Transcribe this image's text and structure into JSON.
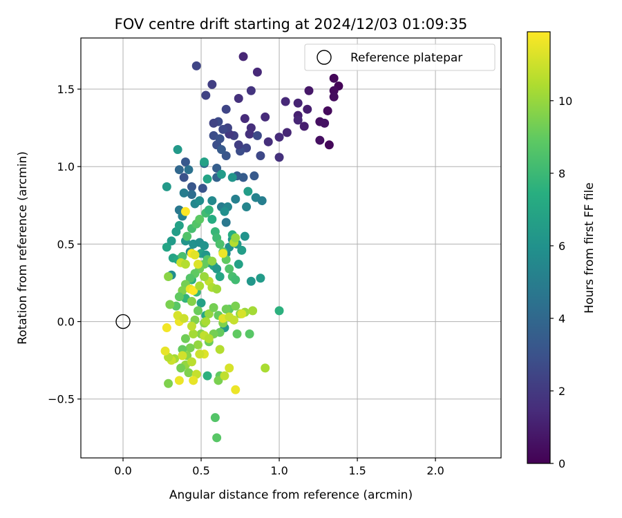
{
  "chart_data": {
    "type": "scatter",
    "title": "FOV centre drift starting at 2024/12/03 01:09:35",
    "xlabel": "Angular distance from reference (arcmin)",
    "ylabel": "Rotation from reference (arcmin)",
    "xlim": [
      -0.27,
      2.42
    ],
    "ylim": [
      -0.88,
      1.83
    ],
    "xticks": [
      0.0,
      0.5,
      1.0,
      1.5,
      2.0
    ],
    "xtick_labels": [
      "0.0",
      "0.5",
      "1.0",
      "1.5",
      "2.0"
    ],
    "yticks": [
      -0.5,
      0.0,
      0.5,
      1.0,
      1.5
    ],
    "ytick_labels": [
      "−0.5",
      "0.0",
      "0.5",
      "1.0",
      "1.5"
    ],
    "grid": true,
    "legend": {
      "placement": "top-right",
      "label": "Reference platepar"
    },
    "reference_point": {
      "x": 0.0,
      "y": 0.0
    },
    "colorbar": {
      "label": "Hours from first FF file",
      "cmap": "viridis",
      "range": [
        0,
        11.9
      ],
      "ticks": [
        0,
        2,
        4,
        6,
        8,
        10
      ],
      "tick_labels": [
        "0",
        "2",
        "4",
        "6",
        "8",
        "10"
      ]
    },
    "points": [
      [
        1.38,
        1.52,
        0.1
      ],
      [
        1.35,
        1.57,
        0.2
      ],
      [
        1.35,
        1.49,
        0.3
      ],
      [
        1.35,
        1.45,
        0.4
      ],
      [
        1.31,
        1.36,
        0.3
      ],
      [
        1.32,
        1.14,
        0.2
      ],
      [
        1.26,
        1.29,
        0.5
      ],
      [
        1.29,
        1.28,
        0.6
      ],
      [
        1.26,
        1.17,
        0.5
      ],
      [
        1.19,
        1.49,
        0.8
      ],
      [
        1.18,
        1.37,
        1.0
      ],
      [
        1.16,
        1.26,
        1.0
      ],
      [
        1.12,
        1.41,
        1.2
      ],
      [
        1.12,
        1.33,
        1.1
      ],
      [
        1.12,
        1.3,
        1.3
      ],
      [
        1.04,
        1.42,
        1.4
      ],
      [
        1.05,
        1.22,
        1.3
      ],
      [
        1.0,
        1.19,
        1.5
      ],
      [
        1.0,
        1.06,
        1.7
      ],
      [
        0.93,
        1.16,
        1.6
      ],
      [
        0.91,
        1.32,
        1.5
      ],
      [
        0.86,
        1.61,
        1.4
      ],
      [
        0.77,
        1.71,
        1.3
      ],
      [
        0.82,
        1.49,
        1.8
      ],
      [
        0.82,
        1.25,
        1.6
      ],
      [
        0.81,
        1.21,
        1.7
      ],
      [
        0.78,
        1.31,
        1.5
      ],
      [
        0.74,
        1.44,
        1.7
      ],
      [
        0.57,
        1.53,
        2.2
      ],
      [
        0.53,
        1.46,
        2.4
      ],
      [
        0.47,
        1.65,
        2.5
      ],
      [
        0.88,
        1.07,
        2.6
      ],
      [
        0.86,
        1.2,
        2.7
      ],
      [
        0.79,
        1.12,
        2.5
      ],
      [
        0.75,
        1.1,
        2.8
      ],
      [
        0.74,
        1.14,
        2.2
      ],
      [
        0.71,
        1.2,
        2.3
      ],
      [
        0.68,
        1.21,
        2.0
      ],
      [
        0.67,
        1.25,
        2.4
      ],
      [
        0.64,
        1.24,
        2.6
      ],
      [
        0.61,
        1.29,
        2.7
      ],
      [
        0.58,
        1.28,
        2.4
      ],
      [
        0.58,
        1.2,
        2.8
      ],
      [
        0.6,
        1.14,
        2.9
      ],
      [
        0.66,
        1.37,
        2.5
      ],
      [
        0.62,
        1.18,
        3.0
      ],
      [
        0.66,
        1.07,
        3.2
      ],
      [
        0.63,
        1.11,
        3.4
      ],
      [
        0.6,
        0.99,
        3.6
      ],
      [
        0.6,
        0.93,
        3.8
      ],
      [
        0.77,
        0.93,
        3.5
      ],
      [
        0.73,
        0.94,
        3.6
      ],
      [
        0.84,
        0.94,
        3.4
      ],
      [
        0.39,
        0.93,
        3.0
      ],
      [
        0.4,
        1.03,
        3.3
      ],
      [
        0.44,
        0.87,
        3.2
      ],
      [
        0.51,
        0.86,
        3.1
      ],
      [
        0.52,
        1.02,
        4.2
      ],
      [
        0.42,
        0.98,
        4.5
      ],
      [
        0.36,
        0.98,
        4.0
      ],
      [
        0.44,
        0.82,
        4.3
      ],
      [
        0.39,
        0.83,
        5.0
      ],
      [
        0.36,
        0.72,
        4.8
      ],
      [
        0.38,
        0.68,
        5.2
      ],
      [
        0.46,
        0.76,
        5.5
      ],
      [
        0.49,
        0.78,
        5.8
      ],
      [
        0.57,
        0.78,
        5.6
      ],
      [
        0.63,
        0.74,
        5.0
      ],
      [
        0.67,
        0.74,
        5.4
      ],
      [
        0.65,
        0.71,
        5.9
      ],
      [
        0.66,
        0.64,
        4.8
      ],
      [
        0.72,
        0.79,
        5.2
      ],
      [
        0.79,
        0.74,
        5.4
      ],
      [
        0.85,
        0.8,
        5.3
      ],
      [
        0.89,
        0.78,
        5.1
      ],
      [
        0.8,
        0.84,
        6.6
      ],
      [
        0.7,
        0.93,
        6.2
      ],
      [
        0.63,
        0.95,
        6.5
      ],
      [
        0.52,
        1.03,
        6.8
      ],
      [
        0.54,
        0.92,
        7.0
      ],
      [
        0.35,
        1.11,
        6.4
      ],
      [
        0.28,
        0.87,
        6.4
      ],
      [
        0.34,
        0.58,
        6.6
      ],
      [
        0.36,
        0.62,
        6.8
      ],
      [
        0.31,
        0.52,
        6.5
      ],
      [
        0.28,
        0.48,
        7.0
      ],
      [
        0.32,
        0.41,
        6.9
      ],
      [
        0.35,
        0.4,
        7.2
      ],
      [
        0.31,
        0.3,
        5.8
      ],
      [
        0.4,
        0.52,
        6.2
      ],
      [
        0.43,
        0.45,
        5.6
      ],
      [
        0.45,
        0.5,
        6.0
      ],
      [
        0.49,
        0.51,
        5.9
      ],
      [
        0.5,
        0.44,
        6.8
      ],
      [
        0.52,
        0.49,
        6.1
      ],
      [
        0.53,
        0.43,
        6.3
      ],
      [
        0.55,
        0.38,
        6.7
      ],
      [
        0.58,
        0.36,
        6.9
      ],
      [
        0.6,
        0.34,
        6.4
      ],
      [
        0.62,
        0.29,
        7.1
      ],
      [
        0.66,
        0.44,
        5.8
      ],
      [
        0.68,
        0.48,
        6.0
      ],
      [
        0.7,
        0.53,
        6.2
      ],
      [
        0.73,
        0.5,
        6.4
      ],
      [
        0.76,
        0.46,
        6.6
      ],
      [
        0.74,
        0.37,
        6.8
      ],
      [
        0.7,
        0.56,
        7.4
      ],
      [
        0.78,
        0.55,
        6.1
      ],
      [
        0.82,
        0.26,
        6.3
      ],
      [
        0.88,
        0.28,
        6.5
      ],
      [
        0.5,
        0.12,
        6.8
      ],
      [
        1.0,
        0.07,
        7.6
      ],
      [
        0.65,
        -0.04,
        6.4
      ],
      [
        0.53,
        0.04,
        7.2
      ],
      [
        0.47,
        0.19,
        8.0
      ],
      [
        0.44,
        0.27,
        7.6
      ],
      [
        0.4,
        0.15,
        7.8
      ],
      [
        0.38,
        0.42,
        8.4
      ],
      [
        0.41,
        0.55,
        8.6
      ],
      [
        0.44,
        0.6,
        8.3
      ],
      [
        0.47,
        0.63,
        8.7
      ],
      [
        0.49,
        0.66,
        8.9
      ],
      [
        0.53,
        0.7,
        8.2
      ],
      [
        0.55,
        0.72,
        7.8
      ],
      [
        0.57,
        0.66,
        7.4
      ],
      [
        0.59,
        0.58,
        7.9
      ],
      [
        0.6,
        0.54,
        8.1
      ],
      [
        0.62,
        0.5,
        8.5
      ],
      [
        0.64,
        0.45,
        8.8
      ],
      [
        0.66,
        0.4,
        9.0
      ],
      [
        0.68,
        0.34,
        8.6
      ],
      [
        0.7,
        0.29,
        8.4
      ],
      [
        0.72,
        0.27,
        8.2
      ],
      [
        0.54,
        0.4,
        8.8
      ],
      [
        0.52,
        0.37,
        9.1
      ],
      [
        0.49,
        0.34,
        9.3
      ],
      [
        0.46,
        0.31,
        9.0
      ],
      [
        0.43,
        0.28,
        8.7
      ],
      [
        0.4,
        0.24,
        9.4
      ],
      [
        0.38,
        0.2,
        9.6
      ],
      [
        0.36,
        0.16,
        9.0
      ],
      [
        0.34,
        0.1,
        8.8
      ],
      [
        0.3,
        0.11,
        9.5
      ],
      [
        0.29,
        0.29,
        9.8
      ],
      [
        0.44,
        0.13,
        9.7
      ],
      [
        0.48,
        0.07,
        9.2
      ],
      [
        0.46,
        0.01,
        9.6
      ],
      [
        0.52,
        -0.01,
        9.8
      ],
      [
        0.55,
        0.05,
        10.0
      ],
      [
        0.58,
        0.09,
        9.4
      ],
      [
        0.61,
        0.04,
        9.1
      ],
      [
        0.64,
        -0.01,
        9.6
      ],
      [
        0.68,
        0.08,
        8.9
      ],
      [
        0.72,
        0.1,
        9.5
      ],
      [
        0.75,
        0.05,
        9.9
      ],
      [
        0.78,
        0.06,
        10.1
      ],
      [
        0.83,
        0.07,
        10.3
      ],
      [
        0.73,
        -0.08,
        9.0
      ],
      [
        0.81,
        -0.08,
        8.8
      ],
      [
        0.66,
        0.08,
        9.3
      ],
      [
        0.62,
        -0.07,
        9.1
      ],
      [
        0.58,
        -0.08,
        9.4
      ],
      [
        0.55,
        -0.13,
        9.2
      ],
      [
        0.5,
        -0.08,
        9.7
      ],
      [
        0.48,
        -0.15,
        10.0
      ],
      [
        0.45,
        -0.08,
        10.3
      ],
      [
        0.43,
        -0.17,
        9.5
      ],
      [
        0.4,
        -0.11,
        9.3
      ],
      [
        0.38,
        -0.18,
        9.1
      ],
      [
        0.41,
        -0.22,
        9.8
      ],
      [
        0.4,
        -0.28,
        10.0
      ],
      [
        0.42,
        -0.33,
        9.6
      ],
      [
        0.37,
        -0.3,
        9.4
      ],
      [
        0.33,
        -0.24,
        10.3
      ],
      [
        0.29,
        -0.4,
        9.6
      ],
      [
        0.54,
        -0.35,
        7.6
      ],
      [
        0.62,
        -0.35,
        9.0
      ],
      [
        0.61,
        -0.38,
        9.5
      ],
      [
        0.72,
        -0.44,
        11.6
      ],
      [
        0.68,
        -0.3,
        11.2
      ],
      [
        0.65,
        -0.35,
        10.8
      ],
      [
        0.62,
        -0.18,
        10.6
      ],
      [
        0.52,
        -0.09,
        10.8
      ],
      [
        0.52,
        -0.21,
        11.3
      ],
      [
        0.49,
        -0.21,
        11.0
      ],
      [
        0.47,
        -0.34,
        10.9
      ],
      [
        0.45,
        -0.38,
        11.5
      ],
      [
        0.44,
        -0.26,
        10.7
      ],
      [
        0.38,
        -0.22,
        11.1
      ],
      [
        0.36,
        -0.38,
        11.6
      ],
      [
        0.31,
        -0.25,
        11.0
      ],
      [
        0.29,
        -0.23,
        10.6
      ],
      [
        0.27,
        -0.19,
        11.5
      ],
      [
        0.28,
        -0.04,
        11.7
      ],
      [
        0.36,
        0.0,
        11.6
      ],
      [
        0.35,
        0.04,
        11.2
      ],
      [
        0.39,
        0.02,
        11.0
      ],
      [
        0.44,
        -0.03,
        10.8
      ],
      [
        0.53,
        0.0,
        10.4
      ],
      [
        0.55,
        -0.11,
        10.6
      ],
      [
        0.64,
        0.02,
        11.4
      ],
      [
        0.68,
        0.03,
        10.9
      ],
      [
        0.91,
        -0.3,
        10.4
      ],
      [
        0.44,
        0.44,
        11.8
      ],
      [
        0.46,
        0.43,
        11.4
      ],
      [
        0.64,
        0.44,
        11.6
      ],
      [
        0.48,
        0.37,
        11.3
      ],
      [
        0.37,
        0.38,
        11.0
      ],
      [
        0.4,
        0.71,
        11.9
      ],
      [
        0.43,
        0.21,
        11.5
      ],
      [
        0.45,
        0.2,
        11.9
      ],
      [
        0.55,
        0.26,
        10.8
      ],
      [
        0.57,
        0.22,
        10.5
      ],
      [
        0.6,
        0.21,
        10.2
      ],
      [
        0.71,
        0.51,
        10.6
      ],
      [
        0.72,
        0.54,
        10.0
      ],
      [
        0.57,
        0.39,
        9.9
      ],
      [
        0.52,
        0.29,
        10.1
      ],
      [
        0.49,
        0.23,
        10.4
      ],
      [
        0.4,
        0.37,
        10.6
      ],
      [
        0.76,
        0.05,
        11.2
      ],
      [
        0.71,
        0.01,
        10.9
      ],
      [
        0.59,
        -0.62,
        8.7
      ],
      [
        0.6,
        -0.75,
        8.8
      ]
    ]
  }
}
